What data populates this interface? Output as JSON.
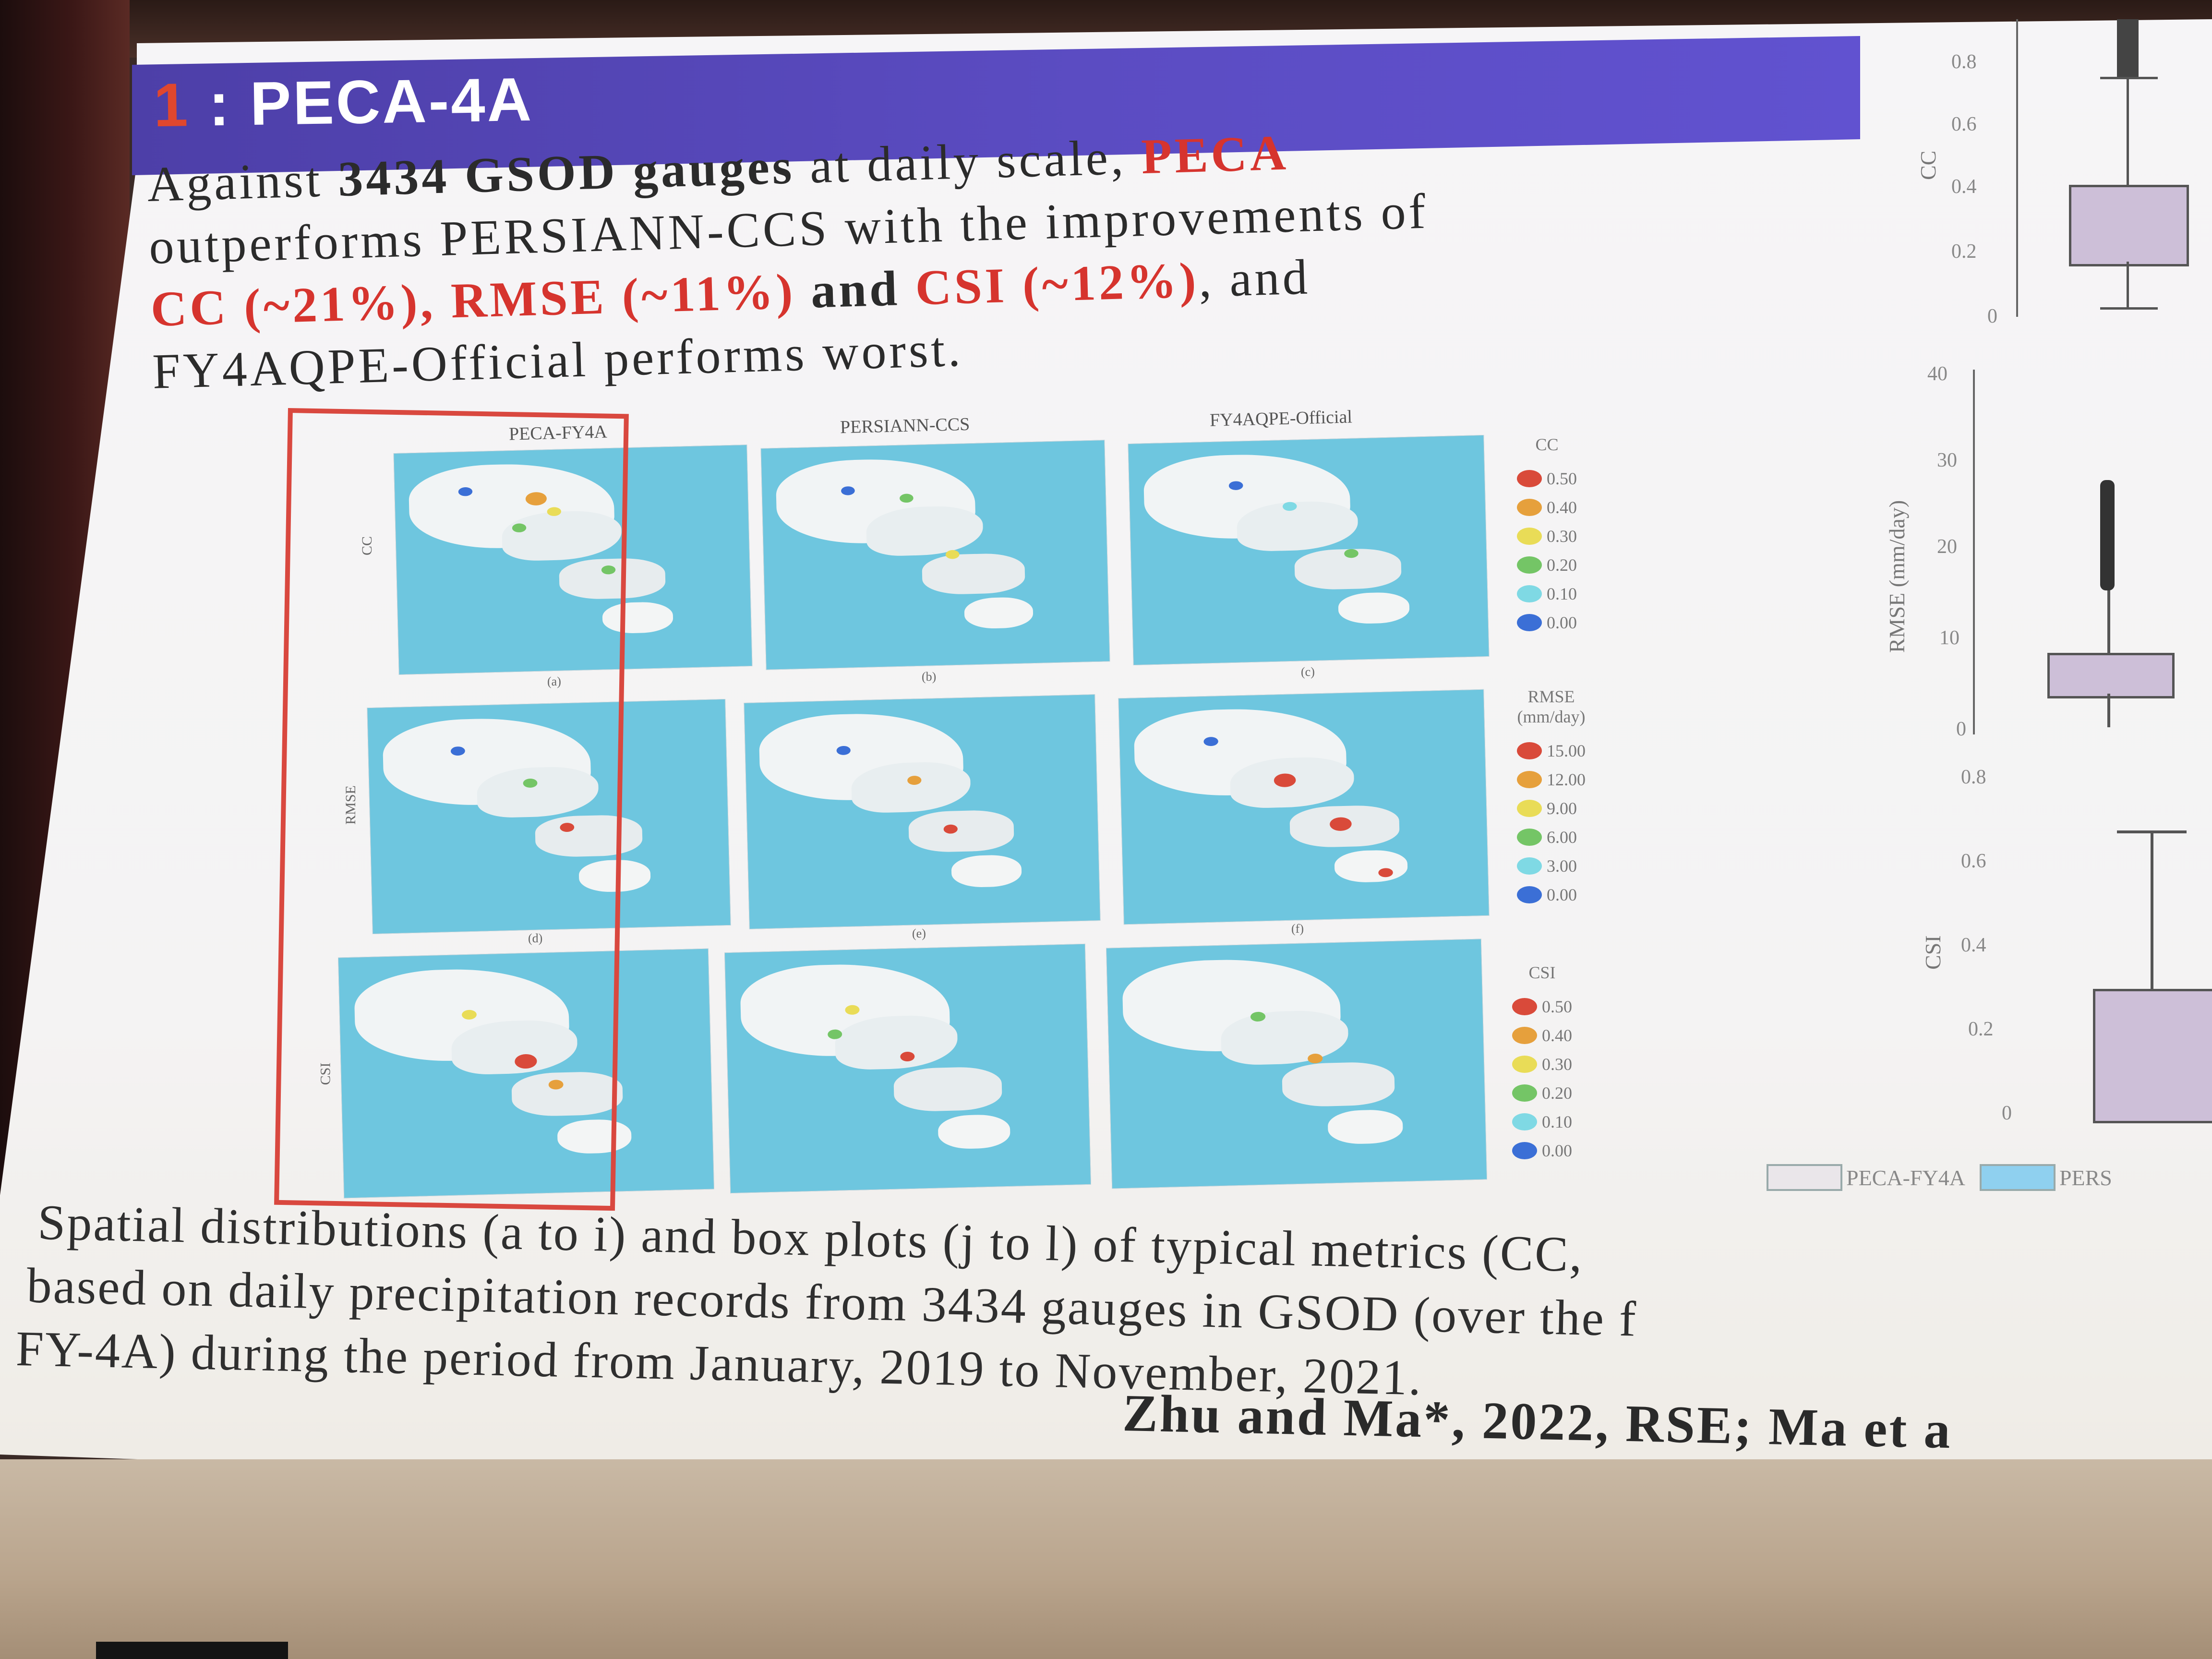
{
  "slide": {
    "title_number": "1",
    "title_text": " : PECA-4A",
    "summary": {
      "t1": "Against ",
      "b1": "3434 GSOD gauges",
      "t2": " at daily scale, ",
      "r1": "PECA",
      "t3": "outperforms PERSIANN-CCS with the improvements of",
      "r2": "CC (~21%), RMSE (~11%)",
      "t4": " and ",
      "r3": "CSI (~12%)",
      "t5": ", and",
      "t6": "FY4AQPE-Official performs worst."
    }
  },
  "maps": {
    "columns": [
      "PECA-FY4A",
      "PERSIANN-CCS",
      "FY4AQPE-Official"
    ],
    "rows": [
      "CC",
      "RMSE",
      "CSI"
    ],
    "panel_labels": [
      "(a)",
      "(b)",
      "(c)",
      "(d)",
      "(e)",
      "(f)"
    ]
  },
  "legends": {
    "cc": {
      "title": "CC",
      "items": [
        "0.50",
        "0.40",
        "0.30",
        "0.20",
        "0.10",
        "0.00"
      ]
    },
    "rmse": {
      "title": "RMSE",
      "subtitle": "(mm/day)",
      "items": [
        "15.00",
        "12.00",
        "9.00",
        "6.00",
        "3.00",
        "0.00"
      ]
    },
    "csi": {
      "title": "CSI",
      "items": [
        "0.50",
        "0.40",
        "0.30",
        "0.20",
        "0.10",
        "0.00"
      ]
    },
    "colors": [
      "#d94a3a",
      "#e6a03c",
      "#e9dc57",
      "#74c566",
      "#7fd9e4",
      "#3b6fd6"
    ]
  },
  "boxplots": {
    "cc": {
      "ylabel": "CC",
      "ticks": [
        "0.8",
        "0.6",
        "0.4",
        "0.2",
        "0"
      ]
    },
    "rmse": {
      "ylabel": "RMSE (mm/day)",
      "ticks": [
        "40",
        "30",
        "20",
        "10",
        "0"
      ]
    },
    "csi": {
      "ylabel": "CSI",
      "ticks": [
        "0.8",
        "0.6",
        "0.4",
        "0.2",
        "0"
      ]
    },
    "legend": [
      "PECA-FY4A",
      "PERS"
    ]
  },
  "caption": {
    "line1": "Spatial distributions (a to i) and box plots (j to l) of typical metrics (CC,",
    "line2": "based on daily precipitation records from 3434 gauges in GSOD (over the f",
    "line3": "FY-4A) during the period from January, 2019 to November, 2021.",
    "citation": "Zhu and Ma*, 2022, RSE; Ma et a"
  }
}
